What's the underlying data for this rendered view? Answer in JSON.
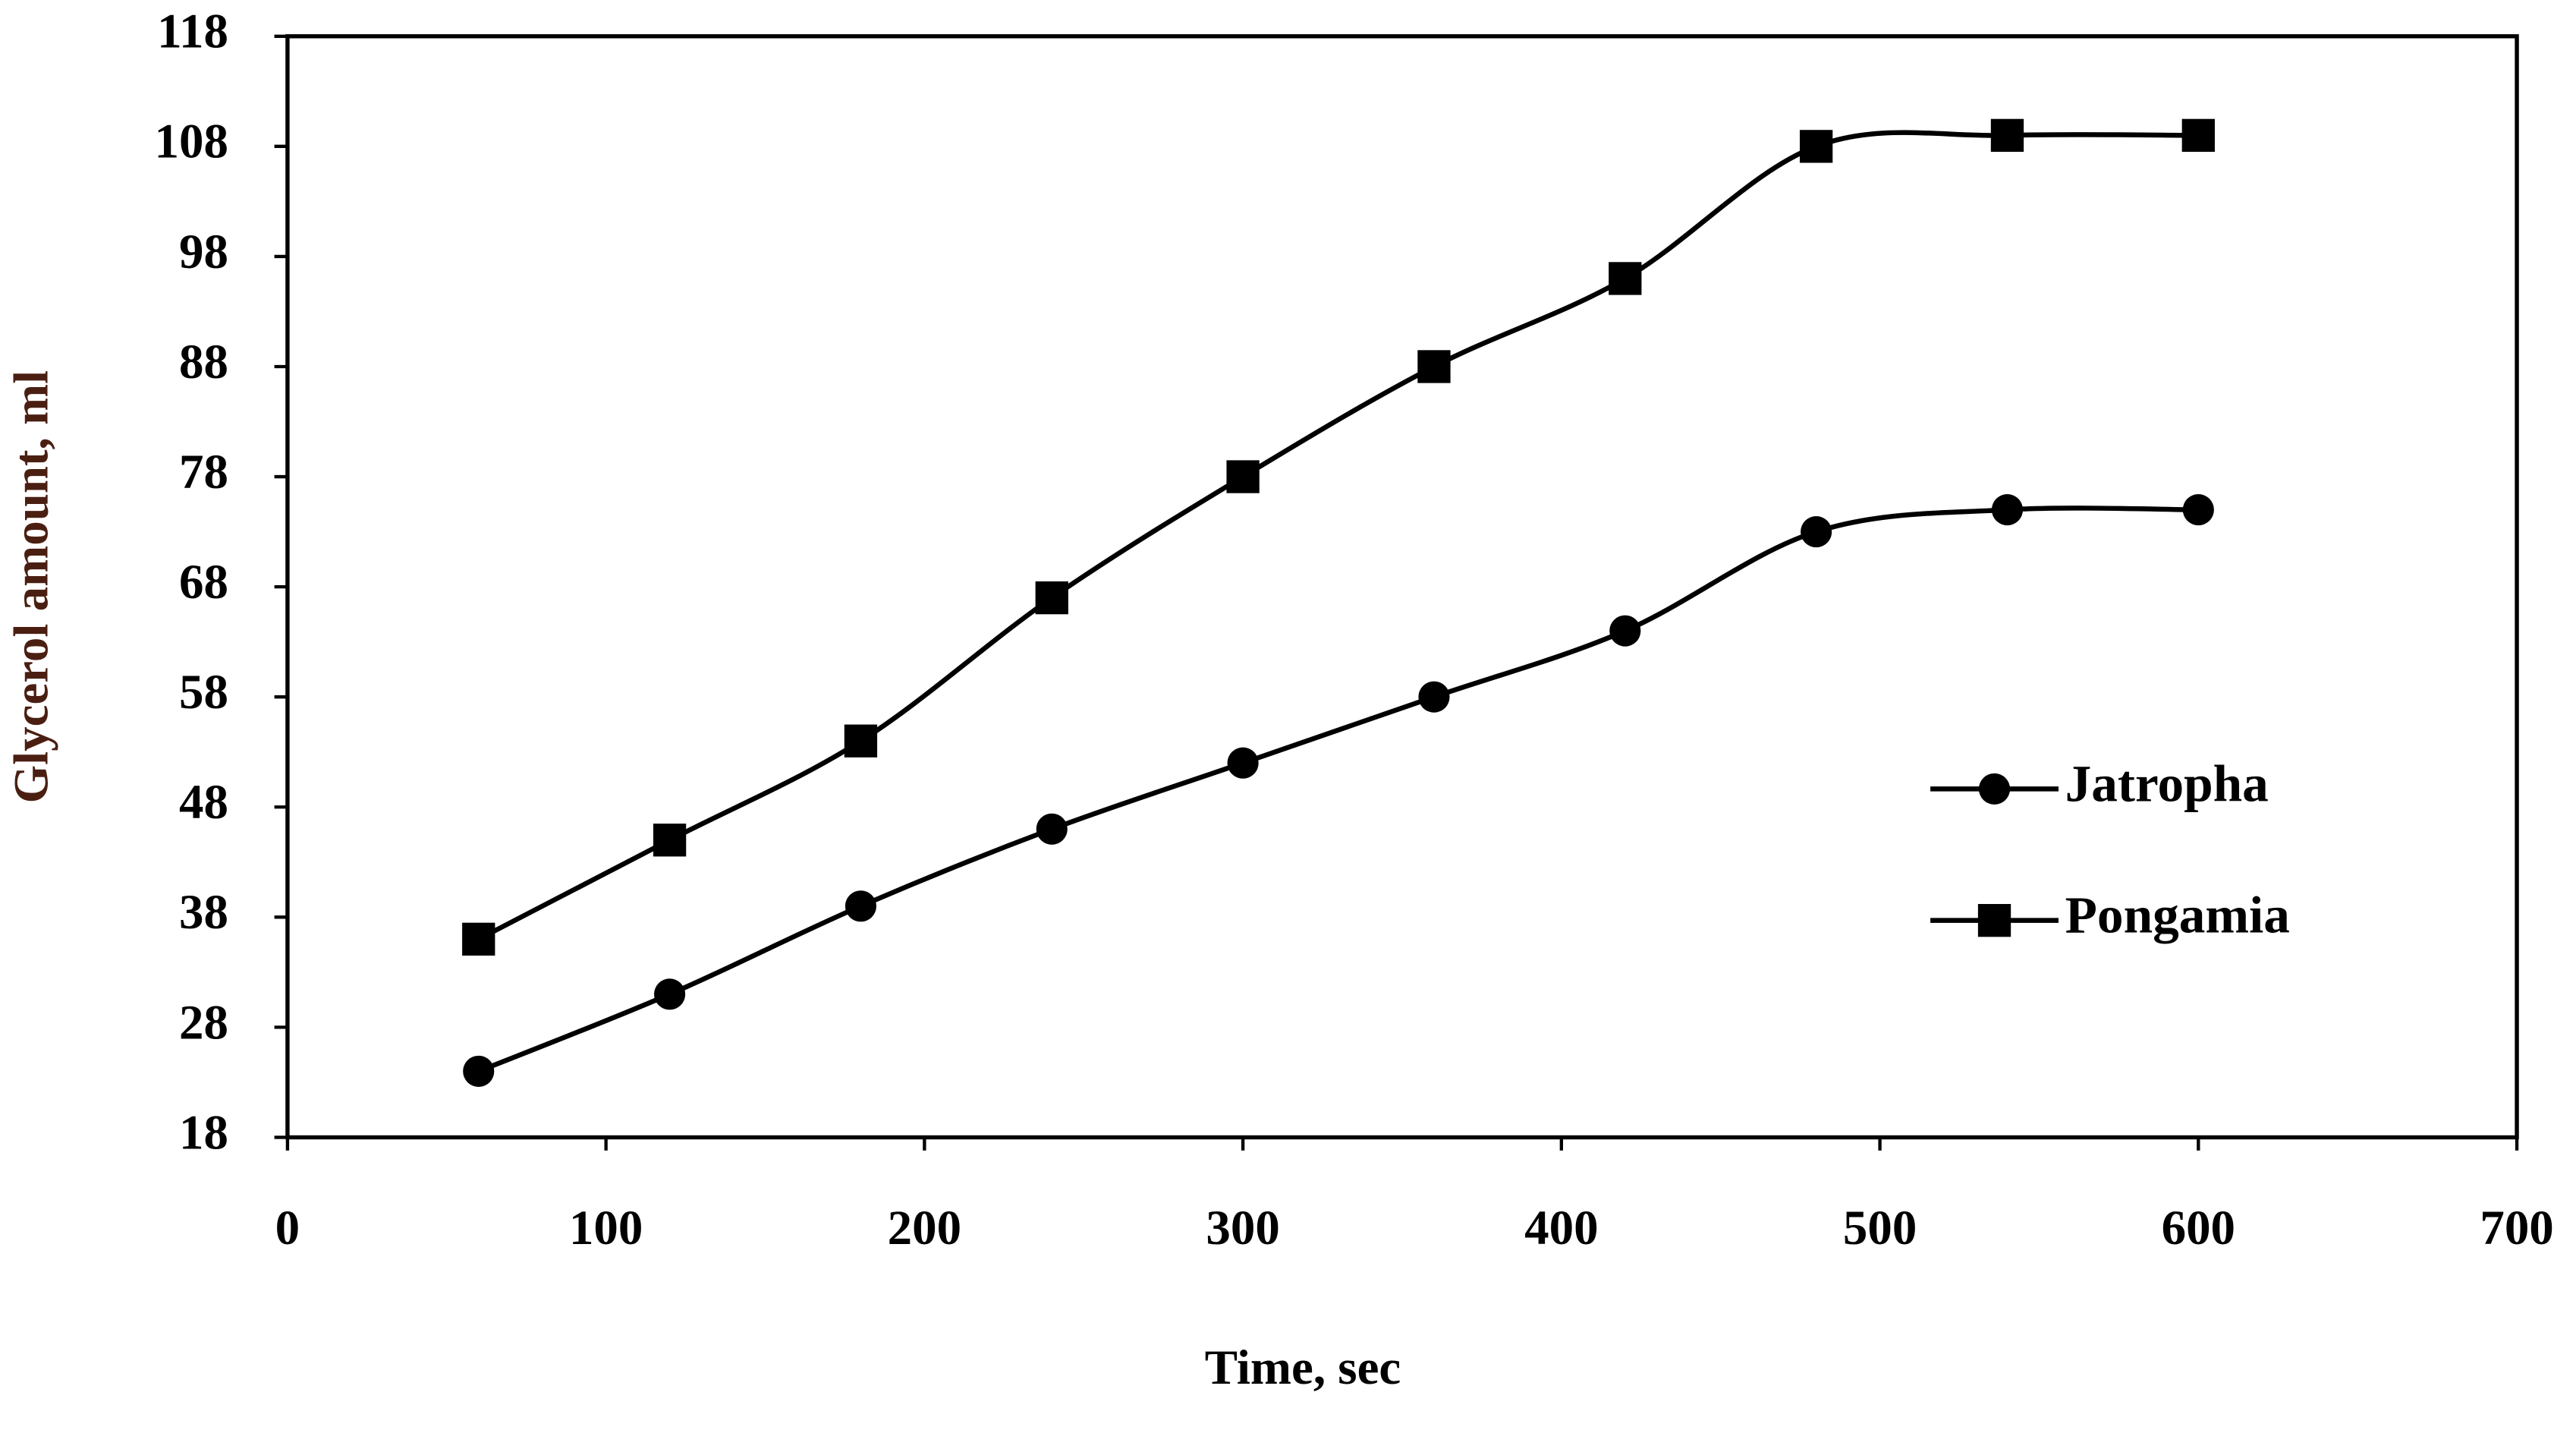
{
  "chart_data": {
    "type": "line",
    "smooth": true,
    "x_label": "Time, sec",
    "y_label": "Glycerol amount, ml",
    "x": [
      60,
      120,
      180,
      240,
      300,
      360,
      420,
      480,
      540,
      600
    ],
    "series": [
      {
        "name": "Jatropha",
        "color": "#000000",
        "marker": "circle",
        "values": [
          24,
          31,
          39,
          46,
          52,
          58,
          64,
          73,
          75,
          75
        ]
      },
      {
        "name": "Pongamia",
        "color": "#000000",
        "marker": "square",
        "values": [
          36,
          45,
          54,
          67,
          78,
          88,
          96,
          108,
          109,
          109
        ]
      }
    ],
    "xlim": [
      0,
      700
    ],
    "xticks": [
      0,
      100,
      200,
      300,
      400,
      500,
      600,
      700
    ],
    "ylim": [
      18,
      118
    ],
    "yticks": [
      18,
      28,
      38,
      48,
      58,
      68,
      78,
      88,
      98,
      108,
      118
    ],
    "legend": "right"
  }
}
